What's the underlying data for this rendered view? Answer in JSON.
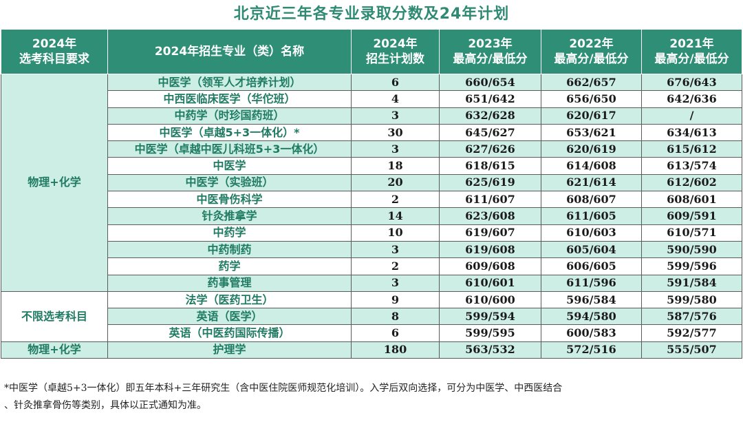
{
  "title": "北京近三年各专业录取分数及24年计划",
  "header": {
    "col1": [
      "2024年",
      "选考科目要求"
    ],
    "col2": [
      "2024年招生专业（类）名称"
    ],
    "col3": [
      "2024年",
      "招生计划数"
    ],
    "col4": [
      "2023年",
      "最高分/最低分"
    ],
    "col5": [
      "2022年",
      "最高分/最低分"
    ],
    "col6": [
      "2021年",
      "最高分/最低分"
    ]
  },
  "groups": [
    {
      "requirement": "物理+化学",
      "rows": [
        {
          "major": "中医学（领军人才培养计划）",
          "plan": "6",
          "y2023": "660/654",
          "y2022": "662/657",
          "y2021": "676/643"
        },
        {
          "major": "中西医临床医学（华佗班）",
          "plan": "4",
          "y2023": "651/642",
          "y2022": "656/650",
          "y2021": "642/636"
        },
        {
          "major": "中药学（时珍国药班）",
          "plan": "3",
          "y2023": "632/628",
          "y2022": "620/617",
          "y2021": "/"
        },
        {
          "major": "中医学（卓越5+3一体化）*",
          "plan": "30",
          "y2023": "645/627",
          "y2022": "653/621",
          "y2021": "634/613"
        },
        {
          "major": "中医学（卓越中医儿科班5+3一体化）",
          "plan": "3",
          "y2023": "627/626",
          "y2022": "620/619",
          "y2021": "615/612"
        },
        {
          "major": "中医学",
          "plan": "18",
          "y2023": "618/615",
          "y2022": "614/608",
          "y2021": "613/574"
        },
        {
          "major": "中医学（实验班）",
          "plan": "20",
          "y2023": "625/619",
          "y2022": "621/614",
          "y2021": "612/602"
        },
        {
          "major": "中医骨伤科学",
          "plan": "2",
          "y2023": "611/607",
          "y2022": "608/607",
          "y2021": "608/601"
        },
        {
          "major": "针灸推拿学",
          "plan": "14",
          "y2023": "623/608",
          "y2022": "611/605",
          "y2021": "609/591"
        },
        {
          "major": "中药学",
          "plan": "10",
          "y2023": "619/607",
          "y2022": "610/603",
          "y2021": "610/571"
        },
        {
          "major": "中药制药",
          "plan": "3",
          "y2023": "619/608",
          "y2022": "605/604",
          "y2021": "590/590"
        },
        {
          "major": "药学",
          "plan": "2",
          "y2023": "609/608",
          "y2022": "606/605",
          "y2021": "599/596"
        },
        {
          "major": "药事管理",
          "plan": "3",
          "y2023": "610/601",
          "y2022": "611/596",
          "y2021": "591/584"
        }
      ]
    },
    {
      "requirement": "不限选考科目",
      "rows": [
        {
          "major": "法学（医药卫生）",
          "plan": "9",
          "y2023": "610/600",
          "y2022": "596/584",
          "y2021": "599/580"
        },
        {
          "major": "英语（医学）",
          "plan": "8",
          "y2023": "599/594",
          "y2022": "594/580",
          "y2021": "587/576"
        },
        {
          "major": "英语（中医药国际传播）",
          "plan": "6",
          "y2023": "599/595",
          "y2022": "600/583",
          "y2021": "592/577"
        }
      ]
    },
    {
      "requirement": "物理+化学",
      "rows": [
        {
          "major": "护理学",
          "plan": "180",
          "y2023": "563/532",
          "y2022": "572/516",
          "y2021": "555/507"
        }
      ]
    }
  ],
  "footnote": {
    "line1": "*中医学（卓越5+3一体化）即五年本科+三年研究生（含中医住院医师规范化培训）。入学后双向选择，可分为中医学、中西医结合",
    "line2": "、针灸推拿骨伤等类别，具体以正式通知为准。"
  }
}
